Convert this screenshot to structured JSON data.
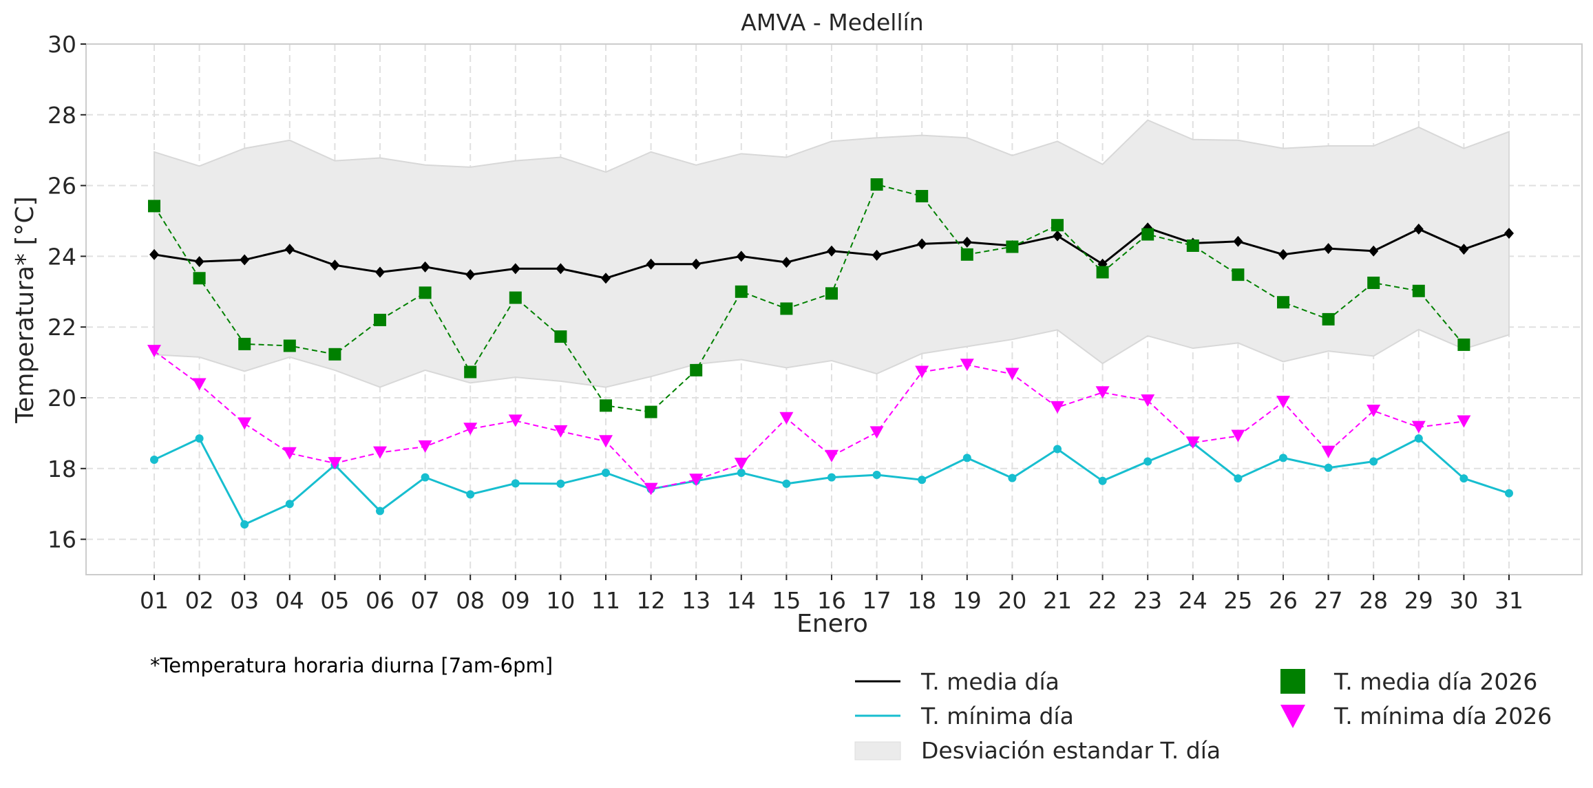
{
  "chart_data": {
    "type": "line",
    "title": "AMVA - Medellín",
    "xlabel": "Enero",
    "ylabel": "Temperatura* [°C]",
    "ylim": [
      15,
      30
    ],
    "yticks": [
      16,
      18,
      20,
      22,
      24,
      26,
      28,
      30
    ],
    "grid": true,
    "categories": [
      "01",
      "02",
      "03",
      "04",
      "05",
      "06",
      "07",
      "08",
      "09",
      "10",
      "11",
      "12",
      "13",
      "14",
      "15",
      "16",
      "17",
      "18",
      "19",
      "20",
      "21",
      "22",
      "23",
      "24",
      "25",
      "26",
      "27",
      "28",
      "29",
      "30",
      "31"
    ],
    "series": [
      {
        "name": "T. media día",
        "color": "#000000",
        "style": "solid",
        "marker": "diamond",
        "values": [
          24.05,
          23.85,
          23.9,
          24.2,
          23.75,
          23.55,
          23.7,
          23.48,
          23.65,
          23.65,
          23.38,
          23.78,
          23.78,
          24.0,
          23.83,
          24.15,
          24.03,
          24.35,
          24.4,
          24.3,
          24.58,
          23.78,
          24.8,
          24.37,
          24.42,
          24.05,
          24.22,
          24.15,
          24.77,
          24.2,
          24.65
        ]
      },
      {
        "name": "T. mínima día",
        "color": "#17becf",
        "style": "solid",
        "marker": "circle",
        "values": [
          18.25,
          18.85,
          16.42,
          17.0,
          18.1,
          16.8,
          17.75,
          17.27,
          17.58,
          17.57,
          17.88,
          17.42,
          17.65,
          17.88,
          17.57,
          17.75,
          17.82,
          17.68,
          18.3,
          17.73,
          18.55,
          17.65,
          18.2,
          18.72,
          17.72,
          18.3,
          18.02,
          18.2,
          18.85,
          17.72,
          17.3
        ]
      },
      {
        "name": "T. media día 2026",
        "color": "#008000",
        "style": "dashed",
        "marker": "square",
        "values": [
          25.42,
          23.38,
          21.52,
          21.47,
          21.23,
          22.2,
          22.97,
          20.73,
          22.83,
          21.73,
          19.78,
          19.6,
          20.78,
          23.0,
          22.52,
          22.95,
          26.03,
          25.7,
          24.05,
          24.27,
          24.88,
          23.55,
          24.62,
          24.3,
          23.48,
          22.7,
          22.22,
          23.25,
          23.02,
          21.5,
          null
        ]
      },
      {
        "name": "T. mínima día 2026",
        "color": "#ff00ff",
        "style": "dashed",
        "marker": "triangle-down",
        "values": [
          21.32,
          20.38,
          19.27,
          18.43,
          18.15,
          18.45,
          18.62,
          19.12,
          19.35,
          19.05,
          18.77,
          17.42,
          17.68,
          18.13,
          19.42,
          18.35,
          19.02,
          20.73,
          20.93,
          20.67,
          19.73,
          20.15,
          19.92,
          18.73,
          18.92,
          19.88,
          18.47,
          19.63,
          19.17,
          19.33,
          null
        ]
      }
    ],
    "band": {
      "name": "Desviación estandar T. día",
      "color": "#ebebeb",
      "upper": [
        26.95,
        26.55,
        27.05,
        27.28,
        26.7,
        26.78,
        26.58,
        26.52,
        26.7,
        26.8,
        26.38,
        26.95,
        26.58,
        26.9,
        26.8,
        27.25,
        27.35,
        27.42,
        27.35,
        26.85,
        27.25,
        26.6,
        27.85,
        27.3,
        27.28,
        27.05,
        27.12,
        27.12,
        27.65,
        27.05,
        27.52
      ],
      "lower": [
        21.22,
        21.15,
        20.75,
        21.15,
        20.78,
        20.3,
        20.78,
        20.42,
        20.58,
        20.47,
        20.3,
        20.6,
        20.95,
        21.08,
        20.85,
        21.05,
        20.68,
        21.25,
        21.45,
        21.65,
        21.92,
        20.97,
        21.75,
        21.4,
        21.55,
        21.02,
        21.32,
        21.18,
        21.93,
        21.38,
        21.78
      ]
    },
    "legend": {
      "placement": "bottom-right",
      "columns": 2
    }
  },
  "footnote": "*Temperatura horaria diurna [7am-6pm]",
  "legend_labels": [
    "T. media día",
    "T. mínima día",
    "Desviación estandar T. día",
    "T. media día 2026",
    "T. mínima día 2026"
  ]
}
